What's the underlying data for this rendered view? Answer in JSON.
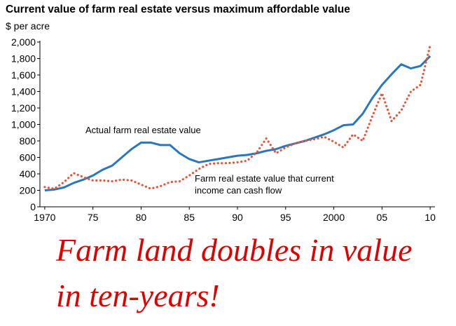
{
  "chart_data": {
    "type": "line",
    "title": "Current value of farm real estate versus maximum affordable value",
    "subtitle": "$ per acre",
    "x": [
      1970,
      1971,
      1972,
      1973,
      1974,
      1975,
      1976,
      1977,
      1978,
      1979,
      1980,
      1981,
      1982,
      1983,
      1984,
      1985,
      1986,
      1987,
      1988,
      1989,
      1990,
      1991,
      1992,
      1993,
      1994,
      1995,
      1996,
      1997,
      1998,
      1999,
      2000,
      2001,
      2002,
      2003,
      2004,
      2005,
      2006,
      2007,
      2008,
      2009,
      2010
    ],
    "series": [
      {
        "name": "Actual farm real estate value",
        "color": "#2a77bd",
        "style": "solid",
        "values": [
          200,
          210,
          235,
          290,
          330,
          380,
          450,
          500,
          600,
          700,
          780,
          780,
          750,
          750,
          650,
          580,
          540,
          560,
          580,
          600,
          620,
          630,
          650,
          680,
          700,
          740,
          770,
          800,
          840,
          880,
          930,
          990,
          1000,
          1130,
          1320,
          1480,
          1610,
          1730,
          1680,
          1710,
          1830
        ]
      },
      {
        "name": "Farm real estate value that current income can cash flow",
        "color": "#e8553a",
        "style": "dotted",
        "values": [
          240,
          220,
          300,
          410,
          360,
          320,
          320,
          310,
          330,
          320,
          270,
          220,
          250,
          300,
          310,
          380,
          460,
          520,
          530,
          530,
          540,
          560,
          660,
          830,
          650,
          720,
          770,
          800,
          820,
          850,
          790,
          720,
          880,
          800,
          1100,
          1380,
          1040,
          1170,
          1400,
          1480,
          1960
        ]
      }
    ],
    "annotation_lines": [
      "Farm real estate value that current",
      "income can cash flow"
    ],
    "headline": [
      "Farm land doubles in value",
      "in ten-years!"
    ],
    "xlim": [
      1969.5,
      2010.5
    ],
    "xticks": [
      1970,
      {
        "value": 1975,
        "label": "75"
      },
      {
        "value": 1980,
        "label": "80"
      },
      {
        "value": 1985,
        "label": "85"
      },
      {
        "value": 1990,
        "label": "90"
      },
      {
        "value": 1995,
        "label": "95"
      },
      2000,
      {
        "value": 2005,
        "label": "05"
      },
      {
        "value": 2010,
        "label": "10"
      }
    ],
    "ylim": [
      0,
      2000
    ],
    "yticks": [
      0,
      200,
      400,
      600,
      800,
      {
        "value": 1000,
        "label": "1,000"
      },
      {
        "value": 1200,
        "label": "1,200"
      },
      {
        "value": 1400,
        "label": "1,400"
      },
      {
        "value": 1600,
        "label": "1,600"
      },
      {
        "value": 1800,
        "label": "1,800"
      },
      {
        "value": 2000,
        "label": "2,000"
      }
    ]
  }
}
